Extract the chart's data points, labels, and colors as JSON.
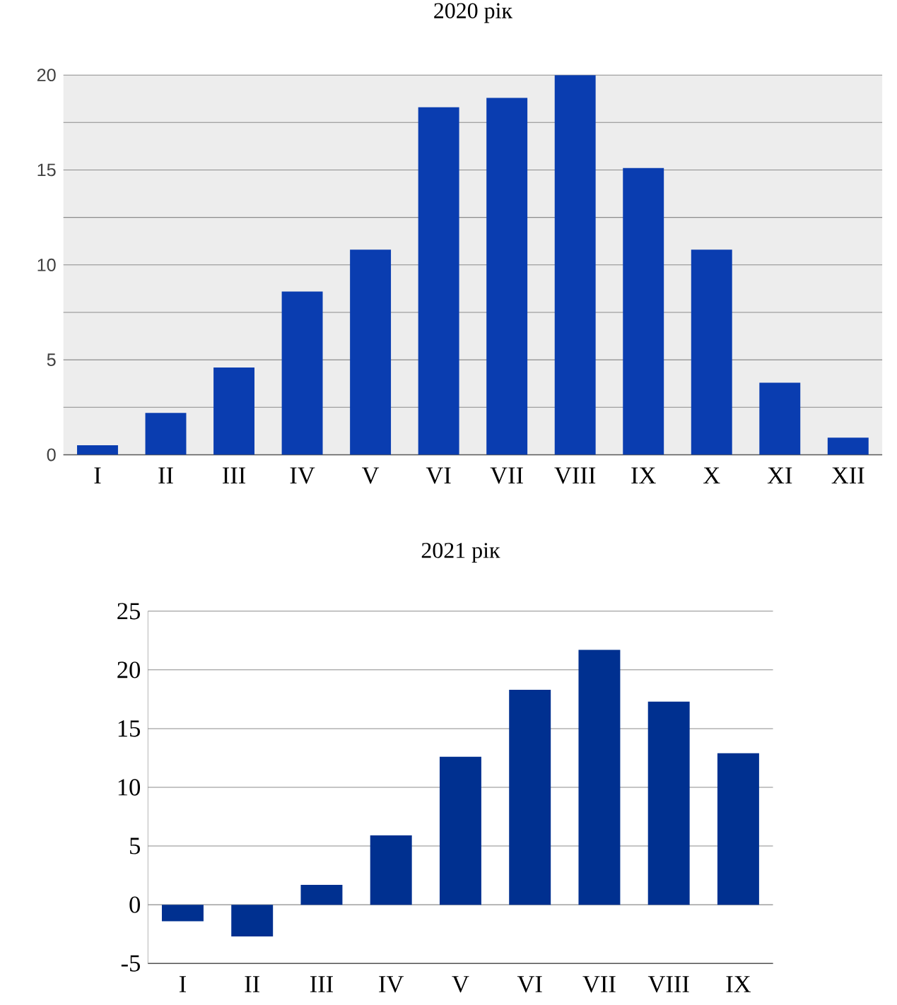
{
  "chart_data": [
    {
      "type": "bar",
      "title": "2020 рік",
      "categories": [
        "I",
        "II",
        "III",
        "IV",
        "V",
        "VI",
        "VII",
        "VIII",
        "IX",
        "X",
        "XI",
        "XII"
      ],
      "values": [
        0.5,
        2.2,
        4.6,
        8.6,
        10.8,
        18.3,
        18.8,
        20.0,
        15.1,
        10.8,
        3.8,
        0.9
      ],
      "color": "#0a3db0",
      "ylim": [
        0,
        20
      ],
      "yticks": [
        0,
        {
          "value": 2.5,
          "label": null
        },
        5,
        {
          "value": 7.5,
          "label": null
        },
        10,
        {
          "value": 12.5,
          "label": null
        },
        15,
        {
          "value": 17.5,
          "label": null
        },
        20
      ],
      "grid": "y"
    },
    {
      "type": "bar",
      "title": "2021 рік",
      "categories": [
        "I",
        "II",
        "III",
        "IV",
        "V",
        "VI",
        "VII",
        "VIII",
        "IX"
      ],
      "values": [
        -1.4,
        -2.7,
        1.7,
        5.9,
        12.6,
        18.3,
        21.7,
        17.3,
        12.9
      ],
      "color": "#003090",
      "ylim": [
        -5,
        25
      ],
      "yticks": [
        -5,
        0,
        5,
        10,
        15,
        20,
        25
      ],
      "grid": "y"
    }
  ]
}
